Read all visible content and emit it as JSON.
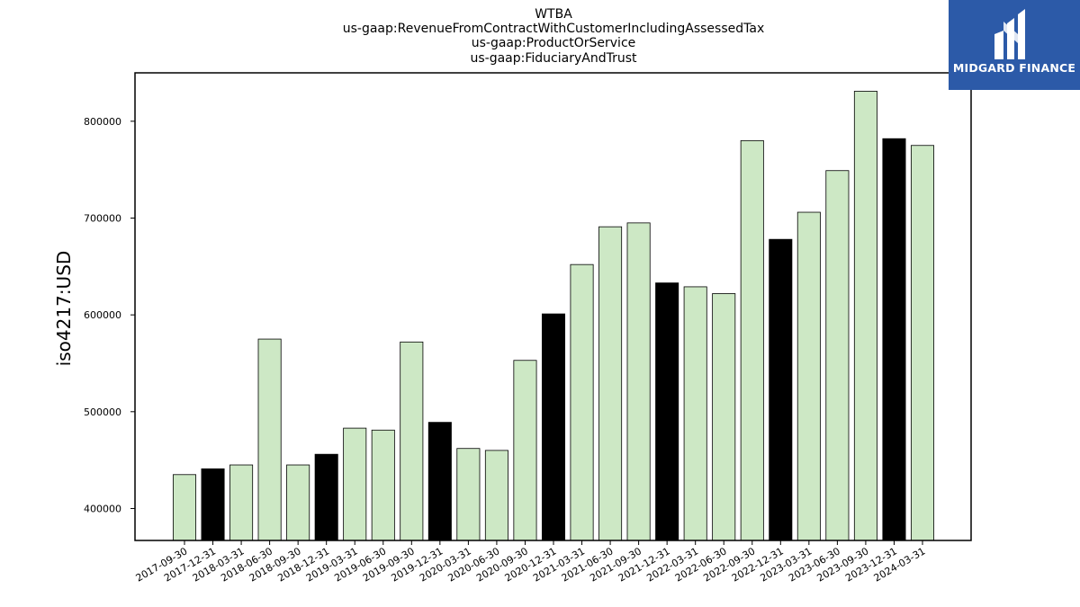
{
  "chart_data": {
    "type": "bar",
    "title_lines": [
      "WTBA",
      "us-gaap:RevenueFromContractWithCustomerIncludingAssessedTax",
      "us-gaap:ProductOrService",
      "us-gaap:FiduciaryAndTrust"
    ],
    "xlabel": "",
    "ylabel": "iso4217:USD",
    "ylim": [
      367000,
      850000
    ],
    "yticks": [
      400000,
      500000,
      600000,
      700000,
      800000
    ],
    "grid": false,
    "categories": [
      "2017-09-30",
      "2017-12-31",
      "2018-03-31",
      "2018-06-30",
      "2018-09-30",
      "2018-12-31",
      "2019-03-31",
      "2019-06-30",
      "2019-09-30",
      "2019-12-31",
      "2020-03-31",
      "2020-06-30",
      "2020-09-30",
      "2020-12-31",
      "2021-03-31",
      "2021-06-30",
      "2021-09-30",
      "2021-12-31",
      "2022-03-31",
      "2022-06-30",
      "2022-09-30",
      "2022-12-31",
      "2023-03-31",
      "2023-06-30",
      "2023-09-30",
      "2023-12-31",
      "2024-03-31"
    ],
    "values": [
      435000,
      441000,
      445000,
      575000,
      445000,
      456000,
      483000,
      481000,
      572000,
      489000,
      462000,
      460000,
      553000,
      601000,
      652000,
      691000,
      695000,
      633000,
      629000,
      622000,
      780000,
      678000,
      706000,
      749000,
      831000,
      782000,
      775000
    ],
    "colors": {
      "default_bar": "#cde8c5",
      "year_end_bar": "#000000",
      "bar_edge": "#000000"
    }
  },
  "logo": {
    "text": "MIDGARD FINANCE",
    "icon": "midgard-m-icon"
  }
}
